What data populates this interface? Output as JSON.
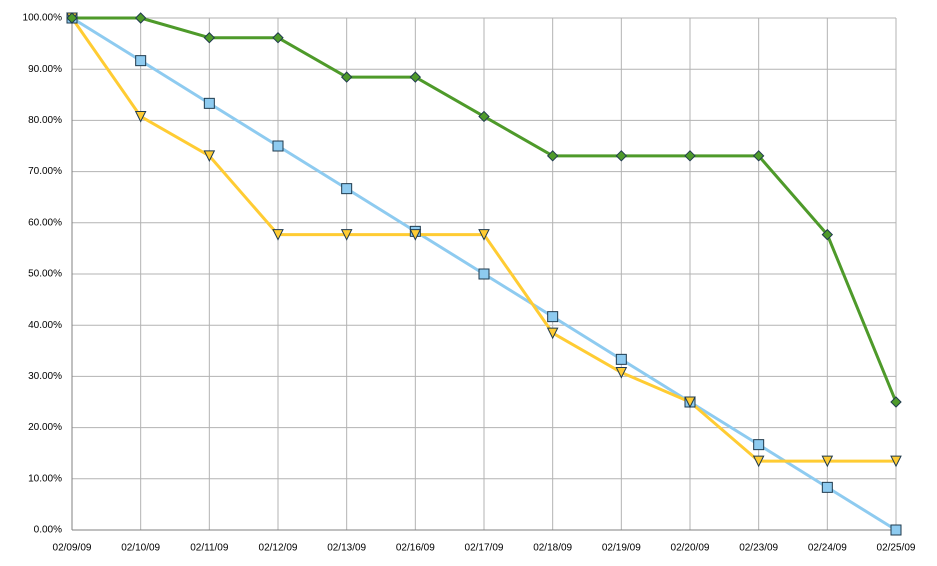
{
  "chart_data": {
    "type": "line",
    "categories": [
      "02/09/09",
      "02/10/09",
      "02/11/09",
      "02/12/09",
      "02/13/09",
      "02/16/09",
      "02/17/09",
      "02/18/09",
      "02/19/09",
      "02/20/09",
      "02/23/09",
      "02/24/09",
      "02/25/09"
    ],
    "series": [
      {
        "color": "#8ecbf0",
        "marker": "square",
        "values": [
          100,
          91.67,
          83.33,
          75,
          66.67,
          58.33,
          50,
          41.67,
          33.33,
          25,
          16.67,
          8.33,
          0
        ]
      },
      {
        "color": "#ffcc33",
        "marker": "triangle-down",
        "values": [
          100,
          80.77,
          73.08,
          57.69,
          57.69,
          57.69,
          57.69,
          38.46,
          30.77,
          25,
          13.46,
          13.46,
          13.46
        ]
      },
      {
        "color": "#4e9a2a",
        "marker": "diamond",
        "values": [
          100,
          100,
          96.15,
          96.15,
          88.46,
          88.46,
          80.77,
          73.08,
          73.08,
          73.08,
          73.08,
          57.69,
          25
        ]
      }
    ],
    "ylim": [
      0,
      100
    ],
    "yticks": [
      {
        "value": 0,
        "label": "0.00%"
      },
      {
        "value": 10,
        "label": "10.00%"
      },
      {
        "value": 20,
        "label": "20.00%"
      },
      {
        "value": 30,
        "label": "30.00%"
      },
      {
        "value": 40,
        "label": "40.00%"
      },
      {
        "value": 50,
        "label": "50.00%"
      },
      {
        "value": 60,
        "label": "60.00%"
      },
      {
        "value": 70,
        "label": "70.00%"
      },
      {
        "value": 80,
        "label": "80.00%"
      },
      {
        "value": 90,
        "label": "90.00%"
      },
      {
        "value": 100,
        "label": "100.00%"
      }
    ],
    "grid": true
  }
}
